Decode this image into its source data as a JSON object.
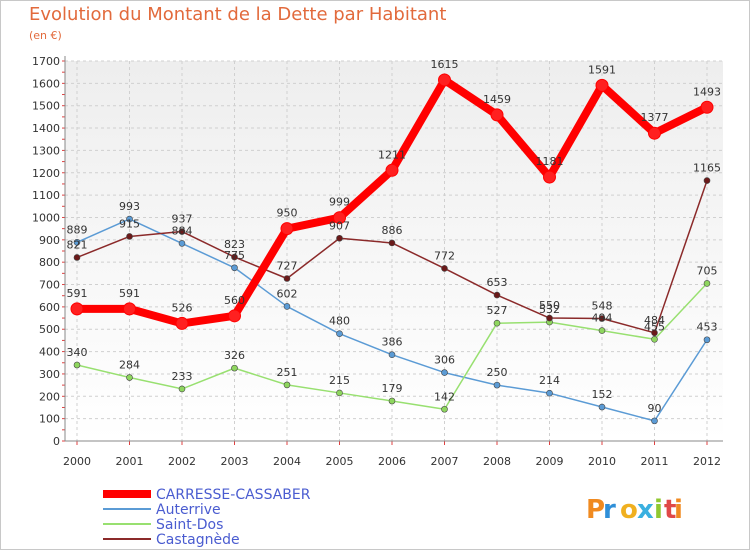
{
  "chart_data": {
    "type": "line",
    "title": "Evolution du Montant de la Dette par Habitant",
    "subtitle": "(en €)",
    "x": [
      2000,
      2001,
      2002,
      2003,
      2004,
      2005,
      2006,
      2007,
      2008,
      2009,
      2010,
      2011,
      2012
    ],
    "ylim": [
      0,
      1700
    ],
    "yticks": [
      0,
      100,
      200,
      300,
      400,
      500,
      600,
      700,
      800,
      900,
      1000,
      1100,
      1200,
      1300,
      1400,
      1500,
      1600,
      1700
    ],
    "grid": true,
    "legend_position": "bottom-left",
    "series": [
      {
        "name": "CARRESSE-CASSABER",
        "color": "#ff0000",
        "marker": "#ff2020",
        "values": [
          591,
          591,
          526,
          560,
          950,
          999,
          1211,
          1615,
          1459,
          1181,
          1591,
          1377,
          1493
        ]
      },
      {
        "name": "Auterrive",
        "color": "#5b9bd5",
        "marker": "#5b9bd5",
        "values": [
          889,
          993,
          884,
          775,
          602,
          480,
          386,
          306,
          250,
          214,
          152,
          90,
          453
        ]
      },
      {
        "name": "Saint-Dos",
        "color": "#98e070",
        "marker": "#8ed65e",
        "values": [
          340,
          284,
          233,
          326,
          251,
          215,
          179,
          142,
          527,
          532,
          494,
          455,
          705
        ]
      },
      {
        "name": "Castagnède",
        "color": "#8b2a2a",
        "marker": "#6b1a1a",
        "values": [
          821,
          915,
          937,
          823,
          727,
          907,
          886,
          772,
          653,
          550,
          548,
          484,
          1165
        ]
      }
    ]
  },
  "brand": {
    "letters": [
      "P",
      "r",
      "o",
      "x",
      "i",
      "t",
      "i"
    ],
    "colors": [
      "#f08a20",
      "#2f8fd8",
      "#f0b020",
      "#3ab0e0",
      "#90c830",
      "#e04848",
      "#f08a20"
    ]
  }
}
